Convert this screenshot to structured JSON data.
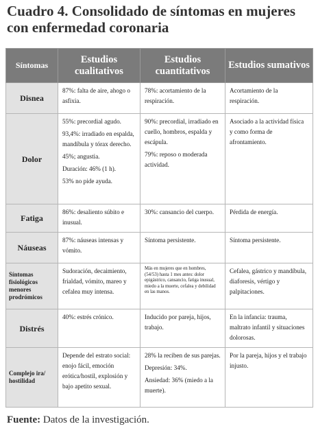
{
  "header": {
    "label": "Cuadro 4.",
    "title": "Consolidado de síntomas en mujeres con enfermedad coronaria"
  },
  "table": {
    "columns": [
      "Síntomas",
      "Estudios cualitativos",
      "Estudios cuantitativos",
      "Estudios sumativos"
    ],
    "rows": [
      {
        "label": "Disnea",
        "cells": [
          [
            "87%: falta de aire, ahogo o asfixia."
          ],
          [
            "78%: acortamiento de la respiración."
          ],
          [
            "Acortamiento de la respiración."
          ]
        ]
      },
      {
        "label": "Dolor",
        "cells": [
          [
            "55%: precordial agudo.",
            "93,4%: irradiado en espalda, mandíbula y tórax derecho.",
            "45%; angustia.",
            "Duración: 46% (1 h).",
            "53% no pide ayuda."
          ],
          [
            "90%: precordial, irradiado en cuello, hombros, espalda y escápula.",
            "79%: reposo o moderada actividad."
          ],
          [
            "Asociado a la actividad física y como forma de afrontamiento."
          ]
        ]
      },
      {
        "label": "Fatiga",
        "cells": [
          [
            "86%: desaliento súbito e inusual."
          ],
          [
            "30%: cansancio del cuerpo."
          ],
          [
            "Pérdida de energía."
          ]
        ]
      },
      {
        "label": "Náuseas",
        "cells": [
          [
            "87%: náuseas intensas y vómito."
          ],
          [
            "Síntoma persistente."
          ],
          [
            "Síntoma persistente."
          ]
        ]
      },
      {
        "label": "Síntomas fisiológicos menores prodrómicos",
        "cells": [
          [
            "Sudoración, decaimiento, frialdad, vómito, mareo y cefalea muy intensa."
          ],
          [
            "Más en mujeres que en hombres, (54/53) hasta 1 mes antes: dolor epigástrico, cansancio, fatiga inusual, miedo a la muerte, cefalea y debilidad en las manos."
          ],
          [
            "Cefalea, gástrico y mandíbula, diaforesis, vértigo y palpitaciones."
          ]
        ]
      },
      {
        "label": "Distrés",
        "cells": [
          [
            "40%: estrés crónico."
          ],
          [
            "Inducido por pareja, hijos, trabajo."
          ],
          [
            "En la infancia: trauma, maltrato infantil y situaciones dolorosas."
          ]
        ]
      },
      {
        "label": "Complejo ira/ hostilidad",
        "cells": [
          [
            "Depende del estrato social: enojo fácil, emoción erótica/hostil, explosión y bajo apetito sexual."
          ],
          [
            "28% la reciben de sus parejas.",
            "Depresión: 34%.",
            "Ansiedad: 36% (miedo a la muerte)."
          ],
          [
            "Por la pareja, hijos y el trabajo injusto."
          ]
        ]
      }
    ]
  },
  "footer": {
    "label": "Fuente:",
    "text": "Datos de la investigación."
  }
}
